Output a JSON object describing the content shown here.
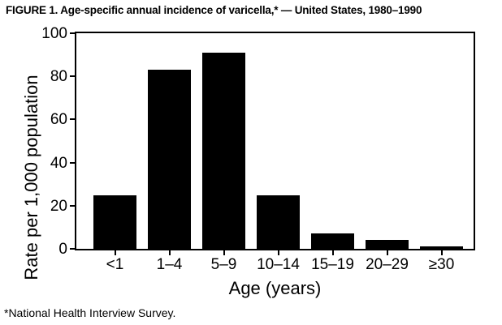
{
  "page": {
    "background": "#ffffff",
    "text_color": "#000000"
  },
  "figure": {
    "title": "FIGURE 1. Age-specific annual incidence of varicella,* — United States, 1980–1990",
    "footnote": "*National Health Interview Survey."
  },
  "chart_data": {
    "type": "bar",
    "title": "FIGURE 1. Age-specific annual incidence of varicella,* — United States, 1980–1990",
    "categories": [
      "<1",
      "1–4",
      "5–9",
      "10–14",
      "15–19",
      "20–29",
      "≥30"
    ],
    "values": [
      25,
      83,
      91,
      25,
      7,
      4,
      1
    ],
    "xlabel": "Age (years)",
    "ylabel": "Rate per 1,000 population",
    "ylim": [
      0,
      100
    ],
    "yticks": [
      0,
      20,
      40,
      60,
      80,
      100
    ],
    "bar_color": "#000000",
    "axis_color": "#000000",
    "grid": false,
    "legend_position": "none",
    "footnote": "*National Health Interview Survey."
  }
}
